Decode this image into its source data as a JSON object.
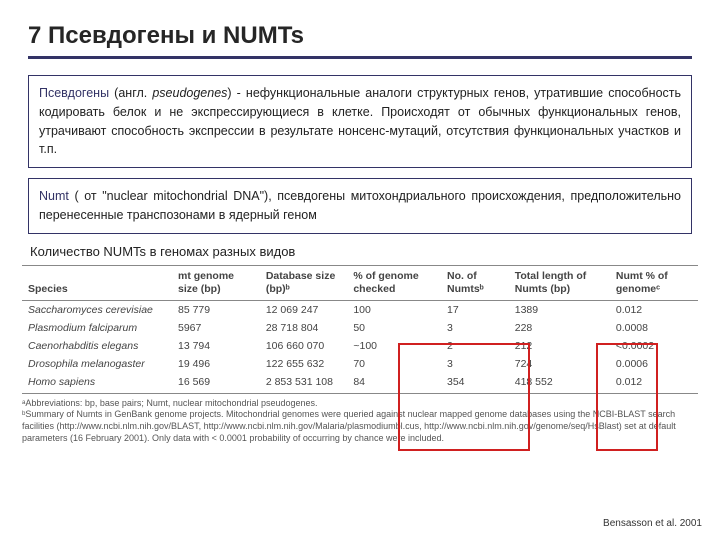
{
  "title": "7 Псевдогены и NUMTs",
  "def1": {
    "lead": "Псевдогены",
    "paren": "(англ. ",
    "ital": "pseudogenes",
    "rest": ") - нефункциональные аналоги структурных генов, утратившие способность кодировать белок и не экспрессирующиеся в клетке. Происходят от обычных функциональных генов, утрачивают способность экспрессии в результате нонсенс-мутаций, отсутствия функциональных участков и т.п."
  },
  "def2": {
    "lead": "Numt",
    "rest1": " ( от \"nuclear mitochondrial DNA\"), псевдогены митохондриального происхождения, предположительно перенесенные транспозонами в ядерный геном"
  },
  "subhead": "Количество NUMTs в геномах разных видов",
  "table": {
    "headers": [
      "Species",
      "mt genome size (bp)",
      "Database size (bp)ᵇ",
      "% of genome checked",
      "No. of Numtsᵇ",
      "Total length of Numts (bp)",
      "Numt % of genomeᶜ"
    ],
    "rows": [
      [
        "Saccharomyces cerevisiae",
        "85 779",
        "12 069 247",
        "100",
        "17",
        "1389",
        "0.012"
      ],
      [
        "Plasmodium falciparum",
        "5967",
        "28 718 804",
        "50",
        "3",
        "228",
        "0.0008"
      ],
      [
        "Caenorhabditis elegans",
        "13 794",
        "106 660 070",
        "~100",
        "2",
        "212",
        "<0.0002"
      ],
      [
        "Drosophila melanogaster",
        "19 496",
        "122 655 632",
        "70",
        "3",
        "724",
        "0.0006"
      ],
      [
        "Homo sapiens",
        "16 569",
        "2 853 531 108",
        "84",
        "354",
        "418 552",
        "0.012"
      ]
    ],
    "footnotes": [
      "ᵃAbbreviations: bp, base pairs; Numt, nuclear mitochondrial pseudogenes.",
      "ᵇSummary of Numts in GenBank genome projects. Mitochondrial genomes were queried against nuclear mapped genome databases using the NCBI-BLAST search facilities (http://www.ncbi.nlm.nih.gov/BLAST, http://www.ncbi.nlm.nih.gov/Malaria/plasmodiumbl.cus, http://www.ncbi.nlm.nih.gov/genome/seq/HsBlast) set at default parameters (16 February 2001). Only data with < 0.0001 probability of occurring by chance were included."
    ]
  },
  "citation": "Bensasson et al. 2001"
}
